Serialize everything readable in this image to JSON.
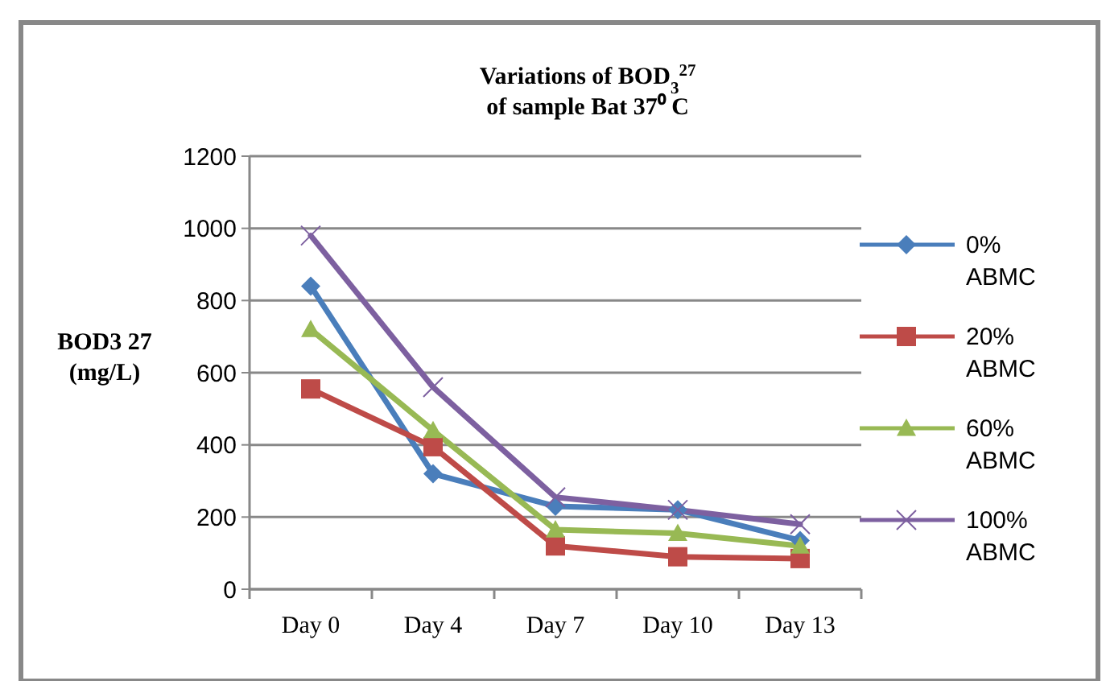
{
  "chart_data": {
    "type": "line",
    "title": "Variations of BOD$_{3}$$^{27}$\nof sample Bat 37⁰ C",
    "ylabel": "BOD3 27\n(mg/L)",
    "categories": [
      "Day 0",
      "Day 4",
      "Day 7",
      "Day 10",
      "Day 13"
    ],
    "ylim": [
      0,
      1200
    ],
    "yticks": [
      0,
      200,
      400,
      600,
      800,
      1000,
      1200
    ],
    "grid": "y",
    "legend": "right",
    "series": [
      {
        "name": "0%\nABMC",
        "color": "#4a7ebb",
        "marker": "diamond",
        "values": [
          840,
          320,
          230,
          220,
          135
        ]
      },
      {
        "name": "20%\nABMC",
        "color": "#be4b48",
        "marker": "square",
        "values": [
          555,
          395,
          120,
          90,
          85
        ]
      },
      {
        "name": "60%\nABMC",
        "color": "#98b954",
        "marker": "triangle",
        "values": [
          720,
          440,
          165,
          155,
          120
        ]
      },
      {
        "name": "100%\nABMC",
        "color": "#7d60a0",
        "marker": "cross",
        "values": [
          980,
          560,
          255,
          220,
          180
        ]
      }
    ]
  }
}
